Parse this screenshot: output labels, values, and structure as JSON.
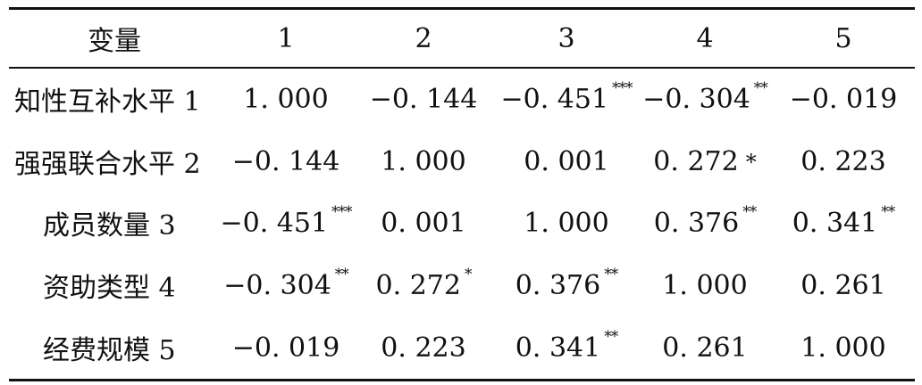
{
  "header": [
    "变量",
    "1",
    "2",
    "3",
    "4",
    "5"
  ],
  "rows": [
    {
      "label": "知性互补水平 1",
      "cells": [
        {
          "v": "1. 000",
          "s": ""
        },
        {
          "v": "−0. 144",
          "s": ""
        },
        {
          "v": "−0. 451",
          "s": "***"
        },
        {
          "v": "−0. 304",
          "s": "**"
        },
        {
          "v": "−0. 019",
          "s": ""
        }
      ]
    },
    {
      "label": "强强联合水平 2",
      "cells": [
        {
          "v": "−0. 144",
          "s": ""
        },
        {
          "v": "1. 000",
          "s": ""
        },
        {
          "v": "0. 001",
          "s": ""
        },
        {
          "v": "0. 272",
          "s": "*"
        },
        {
          "v": "0. 223",
          "s": ""
        }
      ]
    },
    {
      "label": "成员数量 3",
      "cells": [
        {
          "v": "−0. 451",
          "s": "***"
        },
        {
          "v": "0. 001",
          "s": ""
        },
        {
          "v": "1. 000",
          "s": ""
        },
        {
          "v": "0. 376",
          "s": "**"
        },
        {
          "v": "0. 341",
          "s": "**"
        }
      ]
    },
    {
      "label": "资助类型 4",
      "cells": [
        {
          "v": "−0. 304",
          "s": "**"
        },
        {
          "v": "0. 272",
          "s": "*"
        },
        {
          "v": "0. 376",
          "s": "**"
        },
        {
          "v": "1. 000",
          "s": ""
        },
        {
          "v": "0. 261",
          "s": ""
        }
      ]
    },
    {
      "label": "经费规模 5",
      "cells": [
        {
          "v": "−0. 019",
          "s": ""
        },
        {
          "v": "0. 223",
          "s": ""
        },
        {
          "v": "0. 341",
          "s": "**"
        },
        {
          "v": "0. 261",
          "s": ""
        },
        {
          "v": "1. 000",
          "s": ""
        }
      ]
    }
  ]
}
